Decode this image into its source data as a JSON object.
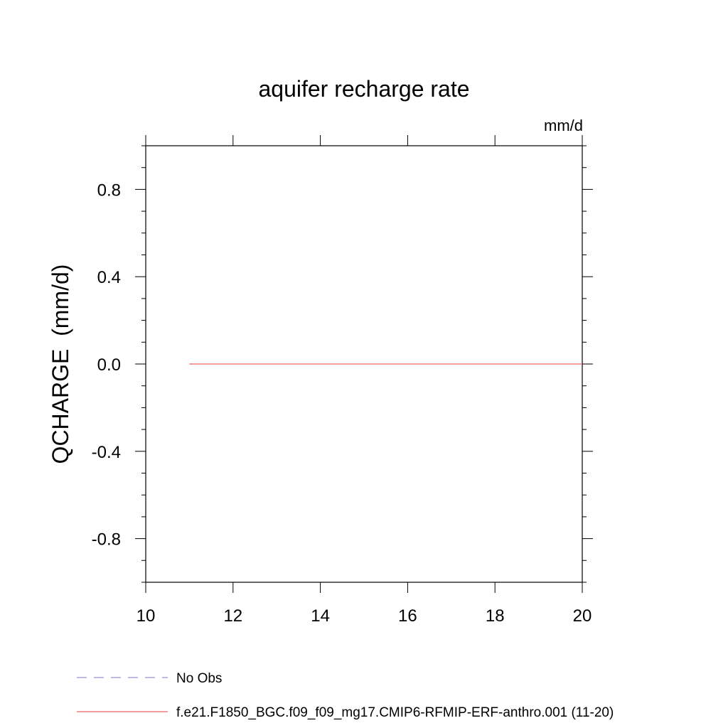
{
  "chart_data": {
    "type": "line",
    "title": "aquifer recharge rate",
    "units_label": "mm/d",
    "xlabel": "",
    "ylabel": "QCHARGE  (mm/d)",
    "xlim": [
      10,
      20
    ],
    "ylim": [
      -1.0,
      1.0
    ],
    "x_ticks": [
      10,
      12,
      14,
      16,
      18,
      20
    ],
    "x_tick_labels": [
      "10",
      "12",
      "14",
      "16",
      "18",
      "20"
    ],
    "y_ticks": [
      -0.8,
      -0.4,
      0.0,
      0.4,
      0.8
    ],
    "y_tick_labels": [
      "-0.8",
      "-0.4",
      "0.0",
      "0.4",
      "0.8"
    ],
    "grid": false,
    "legend_position": "bottom",
    "series": [
      {
        "name": "No Obs",
        "color": "#9a90d0",
        "style": "dashed",
        "x": [],
        "y": []
      },
      {
        "name": "f.e21.F1850_BGC.f09_f09_mg17.CMIP6-RFMIP-ERF-anthro.001 (11-20)",
        "color": "#f06060",
        "style": "solid",
        "x": [
          11,
          12,
          13,
          14,
          15,
          16,
          17,
          18,
          19,
          20
        ],
        "y": [
          0,
          0,
          0,
          0,
          0,
          0,
          0,
          0,
          0,
          0
        ]
      }
    ]
  }
}
